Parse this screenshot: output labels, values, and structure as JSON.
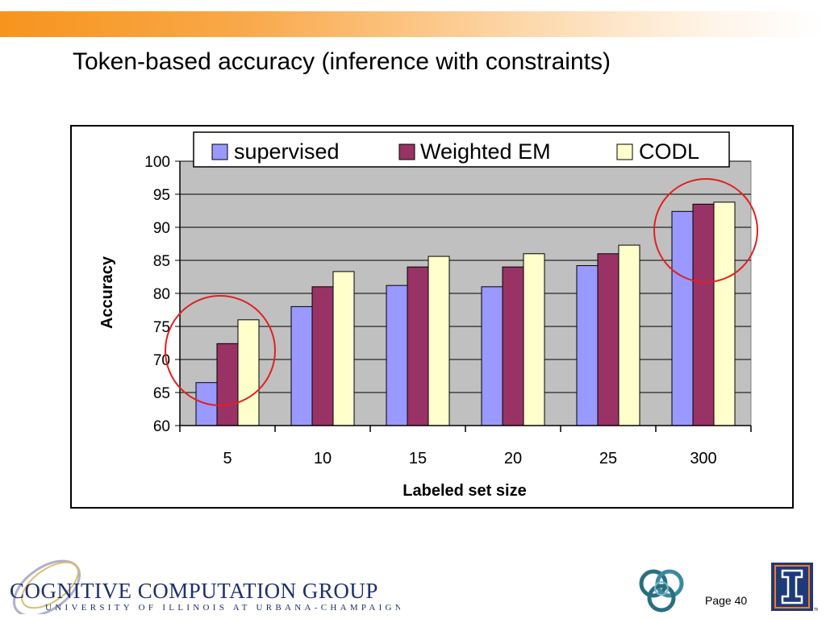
{
  "slide": {
    "title": "Token-based accuracy (inference with constraints)",
    "page_label": "Page 40",
    "footer": {
      "logo_main": "COGNITIVE COMPUTATION GROUP",
      "logo_sub": "UNIVERSITY OF ILLINOIS AT URBANA-CHAMPAIGN"
    }
  },
  "colors": {
    "top_bar": "#f7941d",
    "plot_bg": "#c0c0c0",
    "supervised": "#9999ff",
    "weighted_em": "#993366",
    "codl": "#ffffcc",
    "circle": "#e02020"
  },
  "chart_data": {
    "type": "bar",
    "categories": [
      "5",
      "10",
      "15",
      "20",
      "25",
      "300"
    ],
    "series": [
      {
        "name": "supervised",
        "values": [
          66.5,
          78,
          81.2,
          81,
          84.2,
          92.4
        ]
      },
      {
        "name": "Weighted EM",
        "values": [
          72.4,
          81,
          84,
          84,
          86,
          93.5
        ]
      },
      {
        "name": "CODL",
        "values": [
          76,
          83.3,
          85.6,
          86,
          87.3,
          93.8
        ]
      }
    ],
    "xlabel": "Labeled set size",
    "ylabel": "Accuracy",
    "ylim": [
      60,
      100
    ],
    "yticks": [
      60,
      65,
      70,
      75,
      80,
      85,
      90,
      95,
      100
    ],
    "grid": true,
    "legend_position": "top"
  }
}
